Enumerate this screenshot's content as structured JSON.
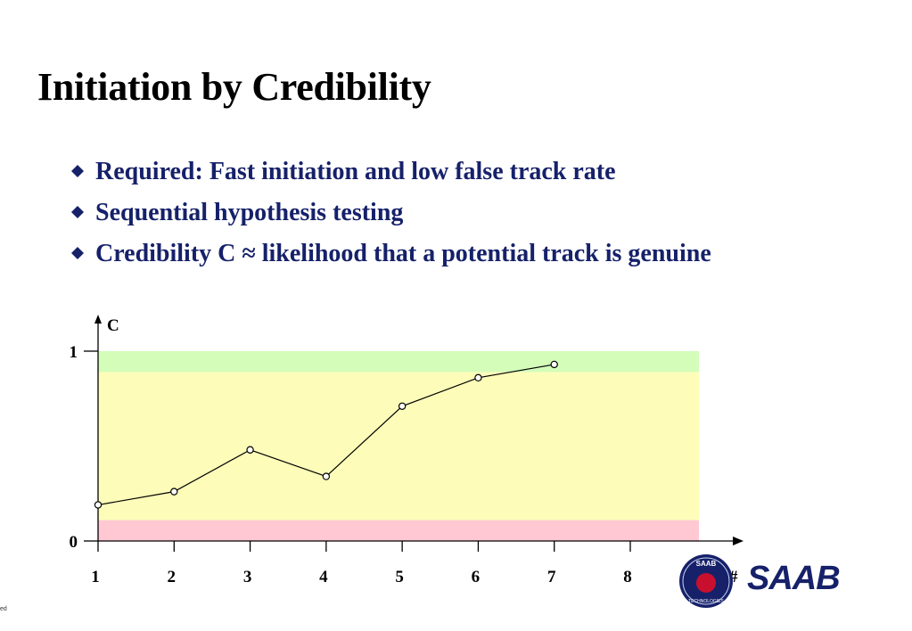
{
  "slide": {
    "title": "Initiation by Credibility",
    "bullets": [
      {
        "text": "Required: Fast initiation and low false track rate"
      },
      {
        "text": "Sequential hypothesis testing"
      },
      {
        "text": "Credibility C ≈ likelihood that a potential track is genuine"
      }
    ],
    "colors": {
      "bullet_text": "#16216a",
      "marker": "#16216a"
    }
  },
  "chart_data": {
    "type": "line",
    "ylabel": "C",
    "xlabel": "#",
    "x": [
      1,
      2,
      3,
      4,
      5,
      6,
      7
    ],
    "values": [
      0.19,
      0.26,
      0.48,
      0.34,
      0.71,
      0.86,
      0.93
    ],
    "xlim": [
      1,
      8
    ],
    "ylim": [
      0,
      1
    ],
    "x_tick_labels": [
      "1",
      "2",
      "3",
      "4",
      "5",
      "6",
      "7",
      "8"
    ],
    "y_tick_labels": [
      "0",
      "1"
    ],
    "bands": [
      {
        "from": 0.0,
        "to": 0.11,
        "color": "#ffc8d2"
      },
      {
        "from": 0.11,
        "to": 0.89,
        "color": "#fdfdb9"
      },
      {
        "from": 0.89,
        "to": 1.0,
        "color": "#d3fdb9"
      }
    ],
    "grid": false,
    "legend": "none"
  },
  "logo": {
    "text": "SAAB",
    "badge_top": "SAAB",
    "badge_bottom": "TECHNOLOGIES"
  },
  "footer": {
    "text": "ed"
  }
}
